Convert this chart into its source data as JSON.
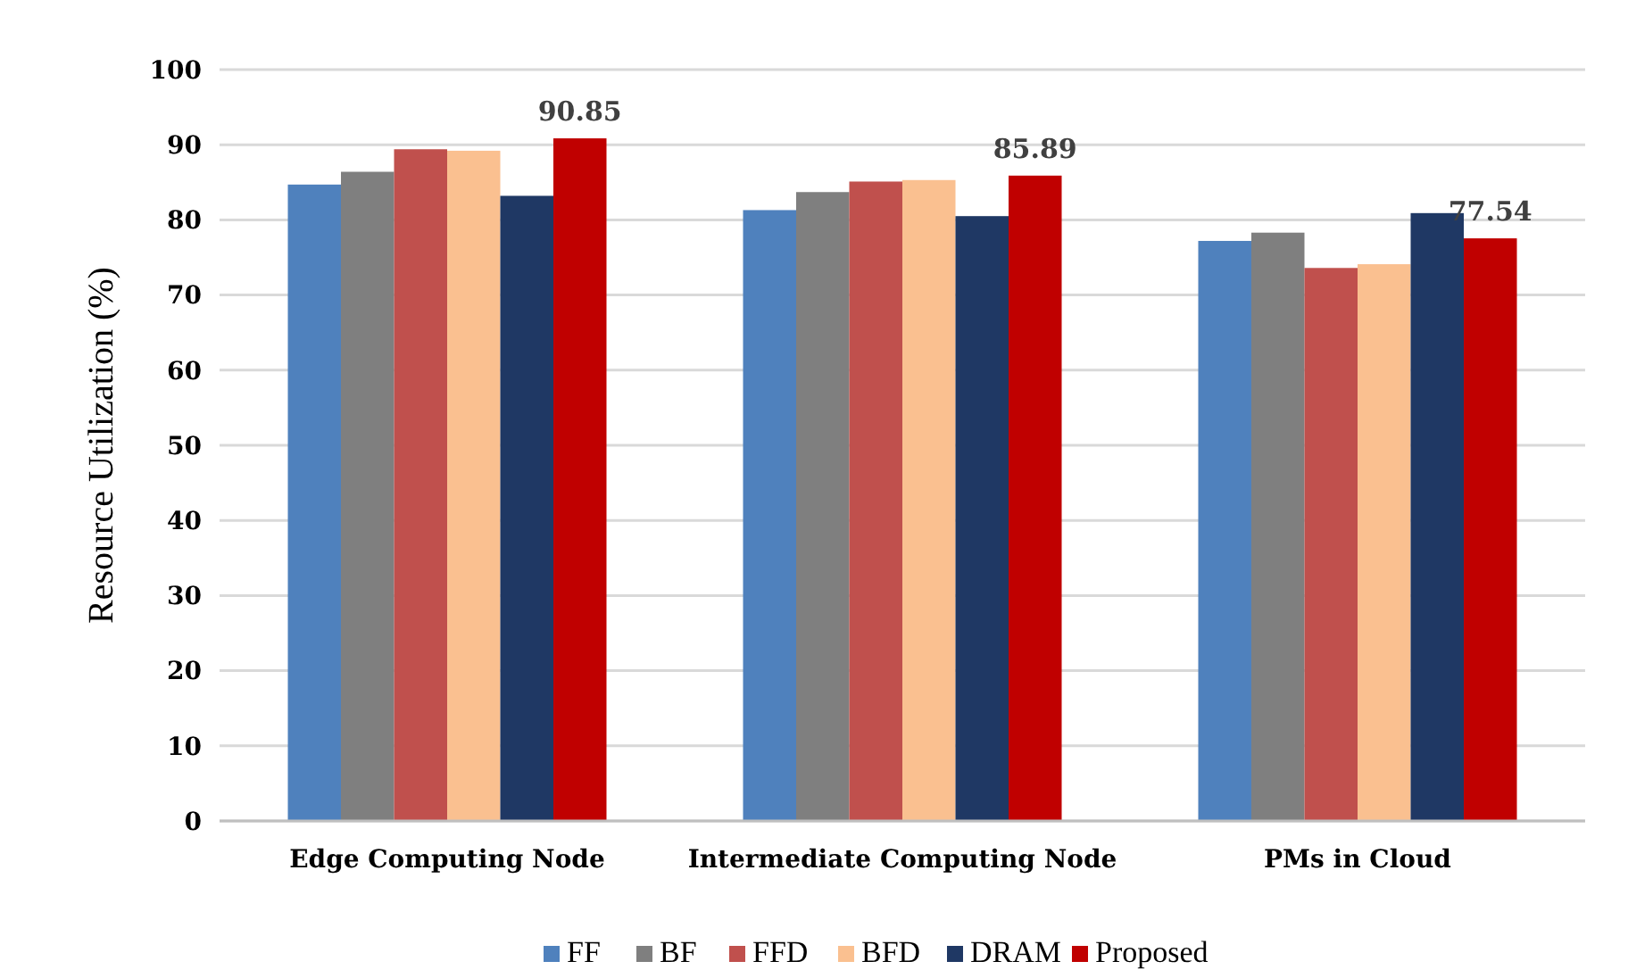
{
  "chart_data": {
    "type": "bar",
    "ylabel": "Resource Utilization (%)",
    "categories": [
      "Edge Computing Node",
      "Intermediate Computing Node",
      "PMs in Cloud"
    ],
    "series": [
      {
        "name": "FF",
        "color": "#4f81bd",
        "values": [
          84.7,
          81.3,
          77.2
        ]
      },
      {
        "name": "BF",
        "color": "#7f7f7f",
        "values": [
          86.4,
          83.7,
          78.3
        ]
      },
      {
        "name": "FFD",
        "color": "#c0504d",
        "values": [
          89.4,
          85.1,
          73.6
        ]
      },
      {
        "name": "BFD",
        "color": "#fac090",
        "values": [
          89.2,
          85.3,
          74.1
        ]
      },
      {
        "name": "DRAM",
        "color": "#1f3864",
        "values": [
          83.2,
          80.5,
          80.9
        ]
      },
      {
        "name": "Proposed",
        "color": "#c00000",
        "values": [
          90.85,
          85.89,
          77.54
        ],
        "value_labels": [
          "90.85",
          "85.89",
          "77.54"
        ]
      }
    ],
    "ylim": [
      0,
      100
    ],
    "yticks": [
      0,
      10,
      20,
      30,
      40,
      50,
      60,
      70,
      80,
      90,
      100
    ],
    "grid": "y",
    "legend": "bottom"
  }
}
